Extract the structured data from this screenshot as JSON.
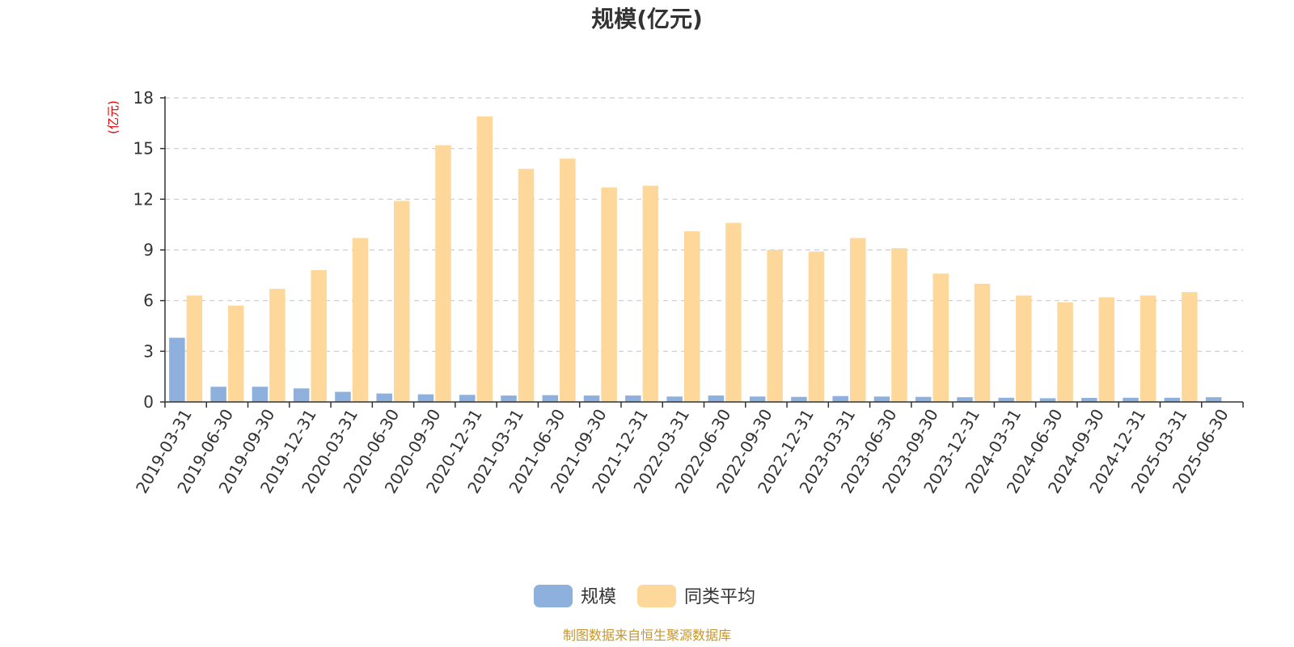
{
  "chart_data": {
    "type": "bar",
    "title": "规模(亿元)",
    "ylabel": "(亿元)",
    "ylim": [
      0,
      18
    ],
    "yticks": [
      0,
      3,
      6,
      9,
      12,
      15,
      18
    ],
    "grid": "horizontal-dashed",
    "legend_position": "bottom-center",
    "categories": [
      "2019-03-31",
      "2019-06-30",
      "2019-09-30",
      "2019-12-31",
      "2020-03-31",
      "2020-06-30",
      "2020-09-30",
      "2020-12-31",
      "2021-03-31",
      "2021-06-30",
      "2021-09-30",
      "2021-12-31",
      "2022-03-31",
      "2022-06-30",
      "2022-09-30",
      "2022-12-31",
      "2023-03-31",
      "2023-06-30",
      "2023-09-30",
      "2023-12-31",
      "2024-03-31",
      "2024-06-30",
      "2024-09-30",
      "2024-12-31",
      "2025-03-31",
      "2025-06-30"
    ],
    "series": [
      {
        "name": "规模",
        "color": "#8eb0dc",
        "values": [
          3.8,
          0.9,
          0.9,
          0.8,
          0.6,
          0.5,
          0.45,
          0.42,
          0.38,
          0.4,
          0.38,
          0.38,
          0.32,
          0.38,
          0.32,
          0.3,
          0.35,
          0.32,
          0.3,
          0.28,
          0.25,
          0.22,
          0.24,
          0.25,
          0.25,
          0.28
        ]
      },
      {
        "name": "同类平均",
        "color": "#fed89a",
        "values": [
          6.3,
          5.7,
          6.7,
          7.8,
          9.7,
          11.9,
          15.2,
          16.9,
          13.8,
          14.4,
          12.7,
          12.8,
          10.1,
          10.6,
          9.0,
          8.9,
          9.7,
          9.1,
          7.6,
          7.0,
          6.3,
          5.9,
          6.2,
          6.3,
          6.5,
          null
        ]
      }
    ]
  },
  "footer": {
    "source": "制图数据来自恒生聚源数据库"
  }
}
